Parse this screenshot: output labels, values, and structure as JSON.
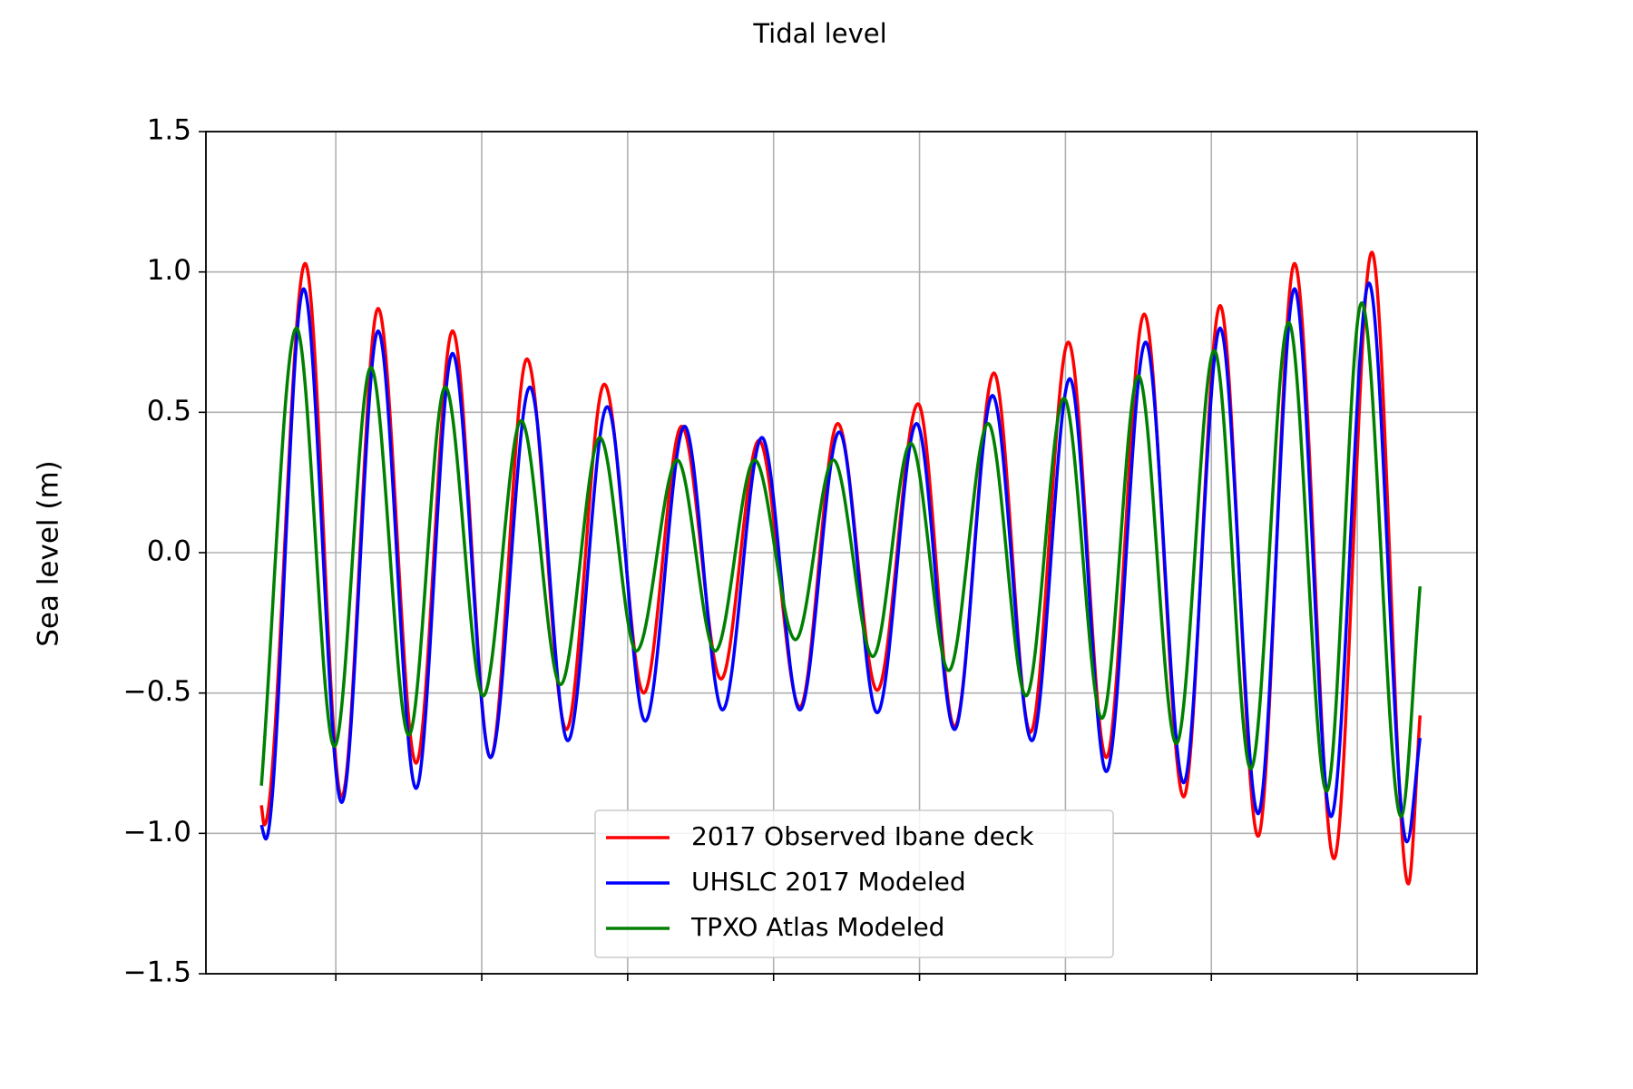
{
  "chart_data": {
    "type": "line",
    "title": "Tidal level",
    "y_label": "Sea level (m)",
    "xlim": [
      0.11,
      8.82
    ],
    "xticks": [
      1,
      2,
      3,
      4,
      5,
      6,
      7,
      8
    ],
    "ylim": [
      -1.5,
      1.5
    ],
    "yticks": [
      {
        "value": -1.5,
        "label": "−1.5"
      },
      {
        "value": -1,
        "label": "−1.0"
      },
      {
        "value": -0.5,
        "label": "−0.5"
      },
      {
        "value": 0,
        "label": "0.0"
      },
      0.5,
      {
        "value": 1,
        "label": "1.0"
      },
      1.5
    ],
    "grid": true,
    "legend": "lower center",
    "series": [
      {
        "name": "2017 Observed Ibane deck",
        "color": "#ff0000",
        "x": [
          0.49,
          0.51,
          0.79,
          1.04,
          1.29,
          1.55,
          1.8,
          2.06,
          2.31,
          2.58,
          2.84,
          3.11,
          3.37,
          3.64,
          3.9,
          4.18,
          4.44,
          4.71,
          4.99,
          5.24,
          5.51,
          5.76,
          6.02,
          6.28,
          6.54,
          6.81,
          7.06,
          7.32,
          7.57,
          7.84,
          8.1,
          8.35,
          8.43
        ],
        "values": [
          -0.9,
          -0.97,
          1.03,
          -0.87,
          0.87,
          -0.75,
          0.79,
          -0.73,
          0.69,
          -0.63,
          0.6,
          -0.5,
          0.45,
          -0.45,
          0.4,
          -0.55,
          0.46,
          -0.49,
          0.53,
          -0.62,
          0.64,
          -0.64,
          0.75,
          -0.73,
          0.85,
          -0.87,
          0.88,
          -1.01,
          1.03,
          -1.09,
          1.07,
          -1.18,
          -0.58
        ]
      },
      {
        "name": "UHSLC 2017 Modeled",
        "color": "#0000ff",
        "x": [
          0.49,
          0.52,
          0.78,
          1.04,
          1.29,
          1.55,
          1.8,
          2.06,
          2.33,
          2.59,
          2.86,
          3.12,
          3.39,
          3.65,
          3.92,
          4.18,
          4.45,
          4.71,
          4.98,
          5.24,
          5.5,
          5.77,
          6.03,
          6.28,
          6.55,
          6.81,
          7.06,
          7.32,
          7.57,
          7.82,
          8.08,
          8.34,
          8.43
        ],
        "values": [
          -0.97,
          -1.02,
          0.94,
          -0.89,
          0.79,
          -0.84,
          0.71,
          -0.73,
          0.59,
          -0.67,
          0.52,
          -0.6,
          0.45,
          -0.56,
          0.41,
          -0.56,
          0.43,
          -0.57,
          0.46,
          -0.63,
          0.56,
          -0.67,
          0.62,
          -0.78,
          0.75,
          -0.82,
          0.8,
          -0.93,
          0.94,
          -0.94,
          0.96,
          -1.03,
          -0.66
        ]
      },
      {
        "name": "TPXO Atlas Modeled",
        "color": "#008000",
        "x": [
          0.49,
          0.73,
          0.99,
          1.24,
          1.5,
          1.75,
          2.01,
          2.27,
          2.54,
          2.81,
          3.06,
          3.34,
          3.6,
          3.87,
          4.15,
          4.41,
          4.68,
          4.94,
          5.2,
          5.47,
          5.73,
          5.99,
          6.25,
          6.5,
          6.76,
          7.02,
          7.27,
          7.53,
          7.79,
          8.03,
          8.3,
          8.43
        ],
        "values": [
          -0.83,
          0.8,
          -0.69,
          0.66,
          -0.65,
          0.59,
          -0.51,
          0.47,
          -0.47,
          0.41,
          -0.35,
          0.33,
          -0.35,
          0.33,
          -0.31,
          0.33,
          -0.37,
          0.39,
          -0.42,
          0.46,
          -0.51,
          0.55,
          -0.59,
          0.63,
          -0.68,
          0.72,
          -0.77,
          0.82,
          -0.85,
          0.89,
          -0.94,
          -0.12
        ]
      }
    ]
  }
}
